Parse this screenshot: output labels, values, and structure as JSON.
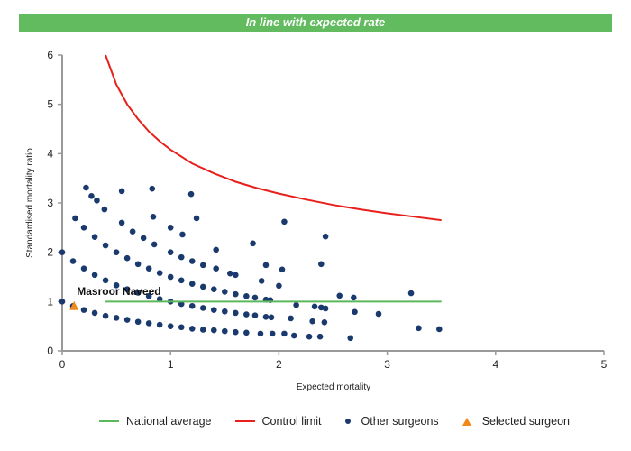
{
  "banner": {
    "text": "In line with expected rate",
    "color": "#62bb5e"
  },
  "chart_data": {
    "type": "scatter",
    "xlabel": "Expected mortality",
    "ylabel": "Standardised mortality ratio",
    "xlim": [
      0,
      5
    ],
    "ylim": [
      0,
      6
    ],
    "xticks": [
      "0",
      "1",
      "2",
      "3",
      "4",
      "5"
    ],
    "yticks": [
      "0",
      "1",
      "2",
      "3",
      "4",
      "5",
      "6"
    ],
    "grid": false,
    "legend_placement": "bottom",
    "colors": {
      "national_average": "#5cb85c",
      "control_limit": "#e8201c",
      "other_surgeons": "#1a3a6e",
      "selected_surgeon": "#f08a1c"
    },
    "legend": [
      "National average",
      "Control limit",
      "Other surgeons",
      "Selected surgeon"
    ],
    "national_average": {
      "name": "National average",
      "x": [
        0.4,
        3.5
      ],
      "y": [
        1,
        1
      ]
    },
    "control_limit": {
      "name": "Control limit",
      "x": [
        0.4,
        0.45,
        0.5,
        0.6,
        0.7,
        0.8,
        0.9,
        1.0,
        1.2,
        1.4,
        1.6,
        1.8,
        2.0,
        2.25,
        2.5,
        2.75,
        3.0,
        3.25,
        3.5
      ],
      "y": [
        6.0,
        5.7,
        5.4,
        5.0,
        4.7,
        4.45,
        4.25,
        4.08,
        3.8,
        3.6,
        3.43,
        3.3,
        3.19,
        3.07,
        2.96,
        2.87,
        2.79,
        2.72,
        2.65
      ]
    },
    "other_surgeons": {
      "name": "Other surgeons",
      "points": [
        [
          0,
          1
        ],
        [
          0.1,
          0.91
        ],
        [
          0.2,
          0.83
        ],
        [
          0.3,
          0.77
        ],
        [
          0.4,
          0.71
        ],
        [
          0.5,
          0.67
        ],
        [
          0.6,
          0.63
        ],
        [
          0.7,
          0.59
        ],
        [
          0.8,
          0.56
        ],
        [
          0.9,
          0.53
        ],
        [
          1.0,
          0.5
        ],
        [
          1.1,
          0.48
        ],
        [
          1.2,
          0.45
        ],
        [
          1.3,
          0.43
        ],
        [
          1.4,
          0.42
        ],
        [
          1.5,
          0.4
        ],
        [
          1.6,
          0.38
        ],
        [
          1.7,
          0.37
        ],
        [
          1.83,
          0.35
        ],
        [
          1.94,
          0.35
        ],
        [
          0,
          2
        ],
        [
          0.1,
          1.82
        ],
        [
          0.2,
          1.67
        ],
        [
          0.3,
          1.54
        ],
        [
          0.4,
          1.43
        ],
        [
          0.5,
          1.33
        ],
        [
          0.6,
          1.25
        ],
        [
          0.7,
          1.18
        ],
        [
          0.8,
          1.11
        ],
        [
          0.9,
          1.05
        ],
        [
          1.0,
          1.0
        ],
        [
          1.1,
          0.95
        ],
        [
          1.2,
          0.91
        ],
        [
          1.3,
          0.87
        ],
        [
          1.4,
          0.83
        ],
        [
          1.5,
          0.8
        ],
        [
          1.6,
          0.77
        ],
        [
          1.7,
          0.74
        ],
        [
          1.78,
          0.72
        ],
        [
          1.88,
          0.69
        ],
        [
          1.93,
          0.68
        ],
        [
          0.2,
          2.5
        ],
        [
          0.3,
          2.31
        ],
        [
          0.4,
          2.14
        ],
        [
          0.5,
          2.0
        ],
        [
          0.6,
          1.88
        ],
        [
          0.7,
          1.76
        ],
        [
          0.8,
          1.67
        ],
        [
          0.9,
          1.58
        ],
        [
          1.0,
          1.5
        ],
        [
          1.1,
          1.43
        ],
        [
          1.2,
          1.36
        ],
        [
          1.3,
          1.3
        ],
        [
          1.4,
          1.25
        ],
        [
          1.5,
          1.2
        ],
        [
          1.6,
          1.15
        ],
        [
          1.7,
          1.11
        ],
        [
          1.78,
          1.08
        ],
        [
          1.88,
          1.04
        ],
        [
          1.92,
          1.03
        ],
        [
          0.55,
          2.6
        ],
        [
          0.65,
          2.42
        ],
        [
          0.75,
          2.29
        ],
        [
          0.85,
          2.16
        ],
        [
          1.0,
          2.0
        ],
        [
          1.1,
          1.9
        ],
        [
          1.2,
          1.82
        ],
        [
          1.3,
          1.74
        ],
        [
          1.42,
          1.67
        ],
        [
          1.55,
          1.57
        ],
        [
          1.6,
          1.54
        ],
        [
          0.12,
          2.69
        ],
        [
          0.22,
          3.31
        ],
        [
          0.27,
          3.14
        ],
        [
          0.32,
          3.05
        ],
        [
          0.39,
          2.87
        ],
        [
          0.55,
          3.24
        ],
        [
          0.83,
          3.29
        ],
        [
          0.84,
          2.72
        ],
        [
          1.19,
          3.18
        ],
        [
          1.24,
          2.69
        ],
        [
          1.0,
          2.5
        ],
        [
          1.11,
          2.36
        ],
        [
          1.42,
          2.05
        ],
        [
          1.76,
          2.18
        ],
        [
          1.84,
          1.42
        ],
        [
          1.88,
          1.74
        ],
        [
          2.0,
          1.32
        ],
        [
          2.03,
          1.65
        ],
        [
          2.05,
          2.62
        ],
        [
          2.43,
          2.32
        ],
        [
          2.39,
          1.76
        ],
        [
          2.56,
          1.12
        ],
        [
          2.69,
          1.08
        ],
        [
          2.7,
          0.79
        ],
        [
          2.92,
          0.75
        ],
        [
          3.22,
          1.17
        ],
        [
          3.29,
          0.46
        ],
        [
          3.48,
          0.44
        ],
        [
          2.66,
          0.26
        ],
        [
          2.38,
          0.29
        ],
        [
          2.28,
          0.29
        ],
        [
          2.14,
          0.31
        ],
        [
          2.31,
          0.6
        ],
        [
          2.42,
          0.58
        ],
        [
          2.33,
          0.9
        ],
        [
          2.39,
          0.88
        ],
        [
          2.43,
          0.86
        ],
        [
          2.11,
          0.66
        ],
        [
          2.16,
          0.93
        ],
        [
          2.05,
          0.35
        ]
      ]
    },
    "selected_surgeon": {
      "name": "Selected surgeon",
      "label": "Masroor Naveed",
      "x": 0.11,
      "y": 0.9
    }
  }
}
